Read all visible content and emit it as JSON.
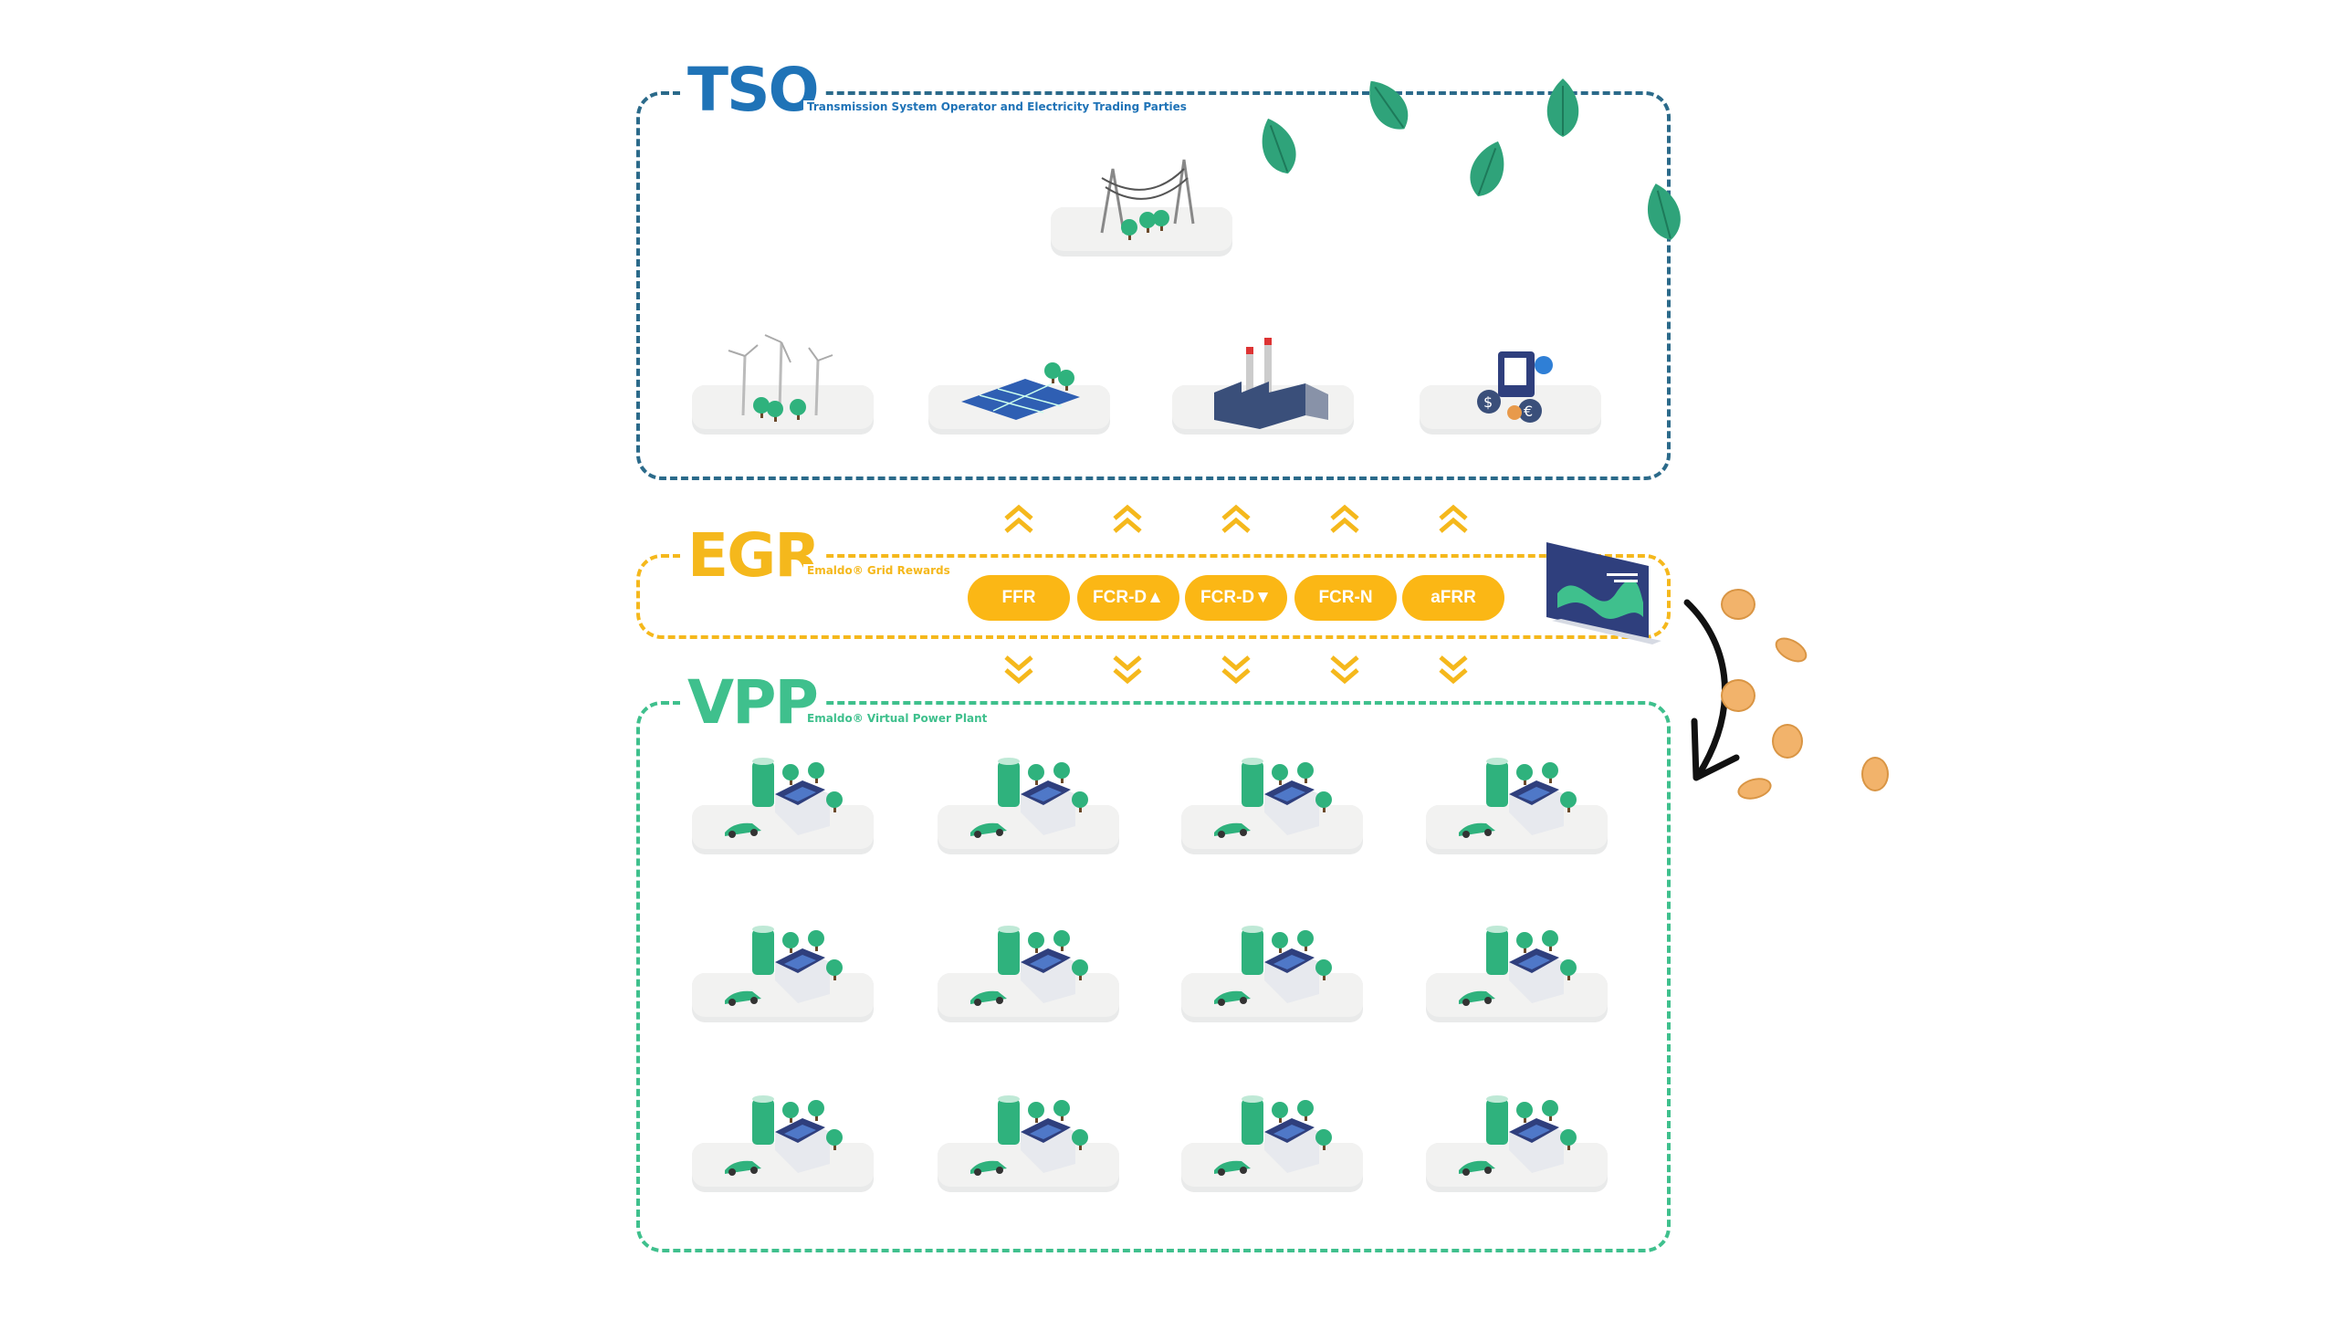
{
  "tso": {
    "title": "TSO",
    "subtitle": "Transmission System Operator and Electricity Trading Parties",
    "color": "#1f73b7",
    "assets": [
      "power-lines-icon",
      "wind-farm-icon",
      "solar-farm-icon",
      "power-plant-icon",
      "trading-icon"
    ]
  },
  "egr": {
    "title": "EGR",
    "subtitle": "Emaldo® Grid Rewards",
    "color": "#f5b81c",
    "services": [
      {
        "label": "FFR"
      },
      {
        "label": "FCR-D▲"
      },
      {
        "label": "FCR-D▼"
      },
      {
        "label": "FCR-N"
      },
      {
        "label": "aFRR"
      }
    ]
  },
  "vpp": {
    "title": "VPP",
    "subtitle": "Emaldo® Virtual Power Plant",
    "color": "#3fc08d",
    "homes_rows": 3,
    "homes_cols": 4
  }
}
